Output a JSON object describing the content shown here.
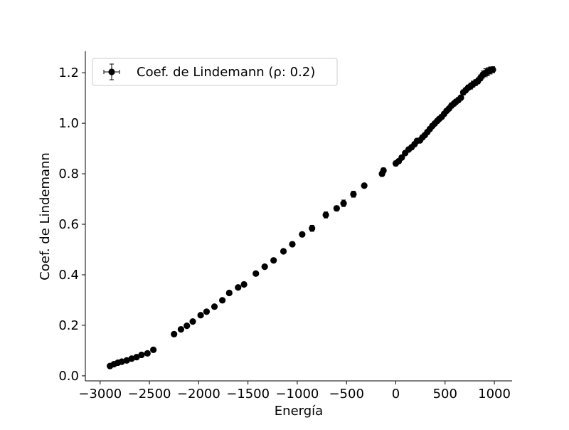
{
  "chart_data": {
    "type": "scatter",
    "xlabel": "Energía",
    "ylabel": "Coef. de Lindemann",
    "xlim": [
      -3150,
      1180
    ],
    "ylim": [
      -0.02,
      1.285
    ],
    "xticks": [
      -3000,
      -2500,
      -2000,
      -1500,
      -1000,
      -500,
      0,
      500,
      1000
    ],
    "xtick_labels": [
      "−3000",
      "−2500",
      "−2000",
      "−1500",
      "−1000",
      "−500",
      "0",
      "500",
      "1000"
    ],
    "yticks": [
      0.0,
      0.2,
      0.4,
      0.6,
      0.8,
      1.0,
      1.2
    ],
    "ytick_labels": [
      "0.0",
      "0.2",
      "0.4",
      "0.6",
      "0.8",
      "1.0",
      "1.2"
    ],
    "grid": false,
    "legend_position": "top-left",
    "series": [
      {
        "name": "Coef. de Lindemann (ρ: 0.2)",
        "color": "#000000",
        "marker": "circle",
        "error_bars": true,
        "points": [
          {
            "x": -2900,
            "y": 0.039,
            "err": 0.004
          },
          {
            "x": -2860,
            "y": 0.046,
            "err": 0.004
          },
          {
            "x": -2820,
            "y": 0.052,
            "err": 0.004
          },
          {
            "x": -2780,
            "y": 0.056,
            "err": 0.004
          },
          {
            "x": -2730,
            "y": 0.061,
            "err": 0.004
          },
          {
            "x": -2680,
            "y": 0.068,
            "err": 0.004
          },
          {
            "x": -2630,
            "y": 0.074,
            "err": 0.004
          },
          {
            "x": -2580,
            "y": 0.083,
            "err": 0.004
          },
          {
            "x": -2520,
            "y": 0.089,
            "err": 0.004
          },
          {
            "x": -2460,
            "y": 0.103,
            "err": 0.005
          },
          {
            "x": -2250,
            "y": 0.165,
            "err": 0.005
          },
          {
            "x": -2180,
            "y": 0.184,
            "err": 0.005
          },
          {
            "x": -2120,
            "y": 0.198,
            "err": 0.005
          },
          {
            "x": -2060,
            "y": 0.215,
            "err": 0.005
          },
          {
            "x": -1980,
            "y": 0.24,
            "err": 0.005
          },
          {
            "x": -1920,
            "y": 0.254,
            "err": 0.005
          },
          {
            "x": -1840,
            "y": 0.274,
            "err": 0.005
          },
          {
            "x": -1760,
            "y": 0.299,
            "err": 0.006
          },
          {
            "x": -1690,
            "y": 0.328,
            "err": 0.006
          },
          {
            "x": -1600,
            "y": 0.35,
            "err": 0.006
          },
          {
            "x": -1540,
            "y": 0.362,
            "err": 0.006
          },
          {
            "x": -1420,
            "y": 0.405,
            "err": 0.006
          },
          {
            "x": -1330,
            "y": 0.432,
            "err": 0.006
          },
          {
            "x": -1240,
            "y": 0.457,
            "err": 0.006
          },
          {
            "x": -1140,
            "y": 0.493,
            "err": 0.006
          },
          {
            "x": -1050,
            "y": 0.521,
            "err": 0.008
          },
          {
            "x": -950,
            "y": 0.56,
            "err": 0.008
          },
          {
            "x": -850,
            "y": 0.584,
            "err": 0.012
          },
          {
            "x": -710,
            "y": 0.637,
            "err": 0.012
          },
          {
            "x": -600,
            "y": 0.663,
            "err": 0.01
          },
          {
            "x": -530,
            "y": 0.683,
            "err": 0.013
          },
          {
            "x": -430,
            "y": 0.719,
            "err": 0.012
          },
          {
            "x": -320,
            "y": 0.753,
            "err": 0.007
          },
          {
            "x": -140,
            "y": 0.8,
            "err": 0.01
          },
          {
            "x": -125,
            "y": 0.813,
            "err": 0.01
          },
          {
            "x": 0,
            "y": 0.841,
            "err": 0.01
          },
          {
            "x": 30,
            "y": 0.85,
            "err": 0.008
          },
          {
            "x": 60,
            "y": 0.864,
            "err": 0.008
          },
          {
            "x": 95,
            "y": 0.882,
            "err": 0.008
          },
          {
            "x": 130,
            "y": 0.896,
            "err": 0.008
          },
          {
            "x": 160,
            "y": 0.905,
            "err": 0.008
          },
          {
            "x": 190,
            "y": 0.917,
            "err": 0.008
          },
          {
            "x": 215,
            "y": 0.93,
            "err": 0.008
          },
          {
            "x": 245,
            "y": 0.932,
            "err": 0.008
          },
          {
            "x": 270,
            "y": 0.944,
            "err": 0.008
          },
          {
            "x": 295,
            "y": 0.953,
            "err": 0.008
          },
          {
            "x": 320,
            "y": 0.965,
            "err": 0.008
          },
          {
            "x": 345,
            "y": 0.977,
            "err": 0.008
          },
          {
            "x": 370,
            "y": 0.989,
            "err": 0.008
          },
          {
            "x": 395,
            "y": 0.999,
            "err": 0.008
          },
          {
            "x": 420,
            "y": 1.009,
            "err": 0.008
          },
          {
            "x": 440,
            "y": 1.017,
            "err": 0.008
          },
          {
            "x": 465,
            "y": 1.025,
            "err": 0.008
          },
          {
            "x": 490,
            "y": 1.037,
            "err": 0.008
          },
          {
            "x": 515,
            "y": 1.049,
            "err": 0.008
          },
          {
            "x": 540,
            "y": 1.058,
            "err": 0.008
          },
          {
            "x": 565,
            "y": 1.07,
            "err": 0.01
          },
          {
            "x": 590,
            "y": 1.078,
            "err": 0.01
          },
          {
            "x": 610,
            "y": 1.085,
            "err": 0.01
          },
          {
            "x": 635,
            "y": 1.092,
            "err": 0.01
          },
          {
            "x": 660,
            "y": 1.101,
            "err": 0.01
          },
          {
            "x": 685,
            "y": 1.122,
            "err": 0.01
          },
          {
            "x": 710,
            "y": 1.131,
            "err": 0.01
          },
          {
            "x": 735,
            "y": 1.141,
            "err": 0.01
          },
          {
            "x": 760,
            "y": 1.147,
            "err": 0.012
          },
          {
            "x": 785,
            "y": 1.155,
            "err": 0.012
          },
          {
            "x": 810,
            "y": 1.161,
            "err": 0.012
          },
          {
            "x": 835,
            "y": 1.168,
            "err": 0.012
          },
          {
            "x": 860,
            "y": 1.18,
            "err": 0.012
          },
          {
            "x": 885,
            "y": 1.193,
            "err": 0.014
          },
          {
            "x": 910,
            "y": 1.2,
            "err": 0.016
          },
          {
            "x": 935,
            "y": 1.204,
            "err": 0.016
          },
          {
            "x": 960,
            "y": 1.209,
            "err": 0.014
          },
          {
            "x": 985,
            "y": 1.212,
            "err": 0.012
          }
        ]
      }
    ]
  }
}
